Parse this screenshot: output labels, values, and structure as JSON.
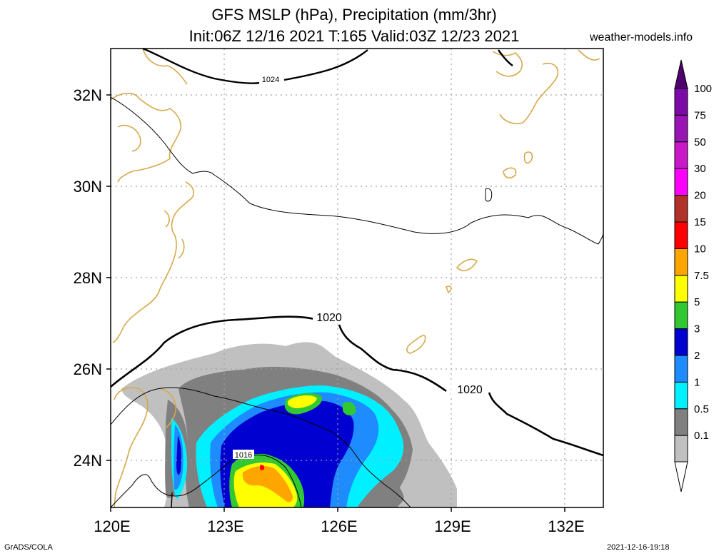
{
  "title": {
    "line1": "GFS MSLP (hPa), Precipitation (mm/3hr)",
    "line2": "Init:06Z 12/16 2021 T:165 Valid:03Z 12/23 2021"
  },
  "site": "weather-models.info",
  "footer": {
    "left": "GrADS/COLA",
    "right": "2021-12-16-19:18"
  },
  "axes": {
    "lat_labels": [
      "32N",
      "30N",
      "28N",
      "26N",
      "24N"
    ],
    "lon_labels": [
      "120E",
      "123E",
      "126E",
      "129E",
      "132E"
    ]
  },
  "contours": {
    "labels": [
      "1024",
      "1020",
      "1020",
      "1016"
    ],
    "isobar_values_hPa": [
      1024,
      1020,
      1016
    ]
  },
  "colorbar": {
    "labels": [
      "100",
      "75",
      "50",
      "30",
      "20",
      "15",
      "10",
      "7.5",
      "5",
      "3",
      "2",
      "1",
      "0.5",
      "0.1"
    ],
    "colors": [
      "#7c0aa6",
      "#9a16b4",
      "#c818c8",
      "#ff00ff",
      "#b0302a",
      "#ff0000",
      "#ffa500",
      "#ffff00",
      "#32c832",
      "#0000d0",
      "#1e8cff",
      "#00f0ff",
      "#808080",
      "#c0c0c0"
    ],
    "bottom_color": "#ffffff",
    "top_arrow_color": "#50006e"
  },
  "colors": {
    "coastline": "#d7a84a",
    "grid": "#a0a0a0",
    "isobar": "#000000"
  }
}
